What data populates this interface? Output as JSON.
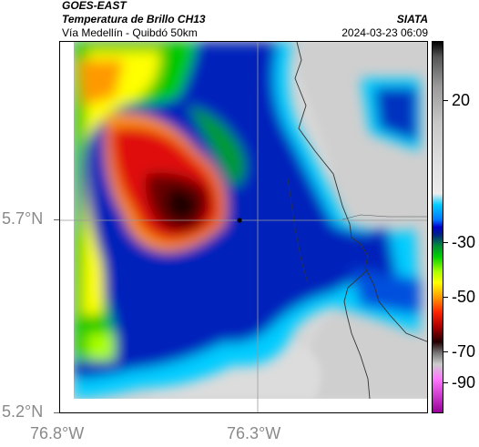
{
  "header": {
    "line1": "GOES-EAST",
    "line2": "Temperatura de Brillo CH13",
    "line3": "Vía Medellín - Quibdó 50km",
    "org": "SIATA",
    "datetime": "2024-03-23 06:09"
  },
  "axes": {
    "y_ticks": [
      "5.7°N",
      "5.2°N"
    ],
    "x_ticks": [
      "76.8°W",
      "76.3°W"
    ]
  },
  "colorbar": {
    "labels": [
      "20",
      "-30",
      "-50",
      "-70",
      "-90"
    ]
  },
  "map": {
    "marker": "location-marker"
  },
  "colors": {
    "cold_core": "#1a0000",
    "red": "#e01010",
    "yellow": "#ffff00",
    "green": "#00c800",
    "blue": "#0022bb",
    "cyan": "#00ccff",
    "grey": "#d4d4d4"
  }
}
